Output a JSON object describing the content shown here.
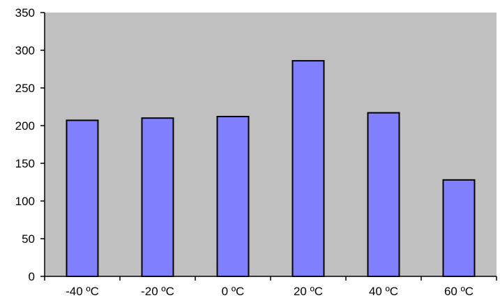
{
  "chart_data": {
    "type": "bar",
    "categories": [
      "-40 ºC",
      "-20 ºC",
      "0 ºC",
      "20 ºC",
      "40 ºC",
      "60 ºC"
    ],
    "values": [
      207,
      210,
      212,
      286,
      217,
      128
    ],
    "ylim": [
      0,
      350
    ],
    "y_ticks": [
      0,
      50,
      100,
      150,
      200,
      250,
      300,
      350
    ],
    "grid": false,
    "legend": "none",
    "colors": {
      "bar_fill": "#8080ff",
      "bar_stroke": "#000000",
      "plot_background": "#c0c0c0",
      "page_background": "#ffffff"
    }
  }
}
